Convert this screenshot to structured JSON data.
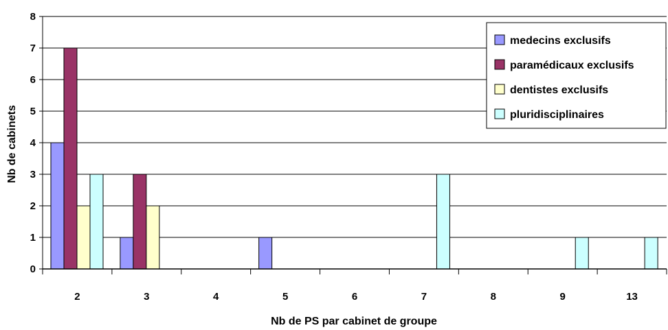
{
  "chart_data": {
    "type": "bar",
    "categories": [
      "2",
      "3",
      "4",
      "5",
      "6",
      "7",
      "8",
      "9",
      "13"
    ],
    "series": [
      {
        "name": "medecins exclusifs",
        "color": "#9999ff",
        "values": [
          4,
          1,
          0,
          1,
          0,
          0,
          0,
          0,
          0
        ]
      },
      {
        "name": "paramédicaux exclusifs",
        "color": "#993366",
        "values": [
          7,
          3,
          0,
          0,
          0,
          0,
          0,
          0,
          0
        ]
      },
      {
        "name": "dentistes exclusifs",
        "color": "#ffffcc",
        "values": [
          2,
          2,
          0,
          0,
          0,
          0,
          0,
          0,
          0
        ]
      },
      {
        "name": "pluridisciplinaires",
        "color": "#ccffff",
        "values": [
          3,
          0,
          0,
          0,
          0,
          3,
          0,
          1,
          1
        ]
      }
    ],
    "xlabel": "Nb de PS par cabinet de groupe",
    "ylabel": "Nb de cabinets",
    "ylim": [
      0,
      8
    ],
    "yticks": [
      0,
      1,
      2,
      3,
      4,
      5,
      6,
      7,
      8
    ],
    "grid": true,
    "legend": "top-right"
  }
}
